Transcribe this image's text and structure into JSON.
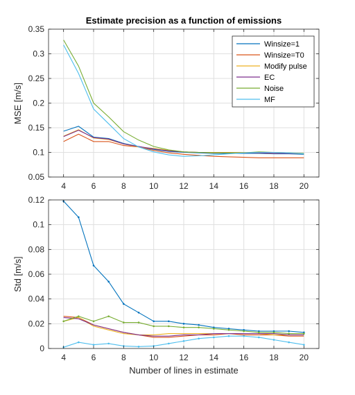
{
  "chart_data": [
    {
      "type": "line",
      "title": "Estimate precision as a function of emissions",
      "xlabel": "",
      "ylabel": "MSE [m/s]",
      "xlim": [
        3,
        21
      ],
      "ylim": [
        0.05,
        0.35
      ],
      "xticks": [
        4,
        6,
        8,
        10,
        12,
        14,
        16,
        18,
        20
      ],
      "yticks": [
        0.05,
        0.1,
        0.15,
        0.2,
        0.25,
        0.3,
        0.35
      ],
      "ytick_labels": [
        "0.05",
        "0.1",
        "0.15",
        "0.2",
        "0.25",
        "0.3",
        "0.35"
      ],
      "grid": true,
      "legend": "top-right",
      "x": [
        4,
        5,
        6,
        7,
        8,
        9,
        10,
        11,
        12,
        13,
        14,
        15,
        16,
        17,
        18,
        19,
        20
      ],
      "series": [
        {
          "name": "Winsize=1",
          "color": "#0072BD",
          "values": [
            0.143,
            0.153,
            0.131,
            0.128,
            0.118,
            0.112,
            0.106,
            0.102,
            0.1,
            0.099,
            0.098,
            0.098,
            0.098,
            0.098,
            0.097,
            0.097,
            0.096
          ]
        },
        {
          "name": "Winsize=T0",
          "color": "#D95319",
          "values": [
            0.122,
            0.137,
            0.122,
            0.122,
            0.114,
            0.111,
            0.104,
            0.099,
            0.096,
            0.094,
            0.092,
            0.091,
            0.09,
            0.089,
            0.089,
            0.089,
            0.089
          ]
        },
        {
          "name": "Modify pulse",
          "color": "#EDB120",
          "values": [
            0.133,
            0.146,
            0.129,
            0.126,
            0.117,
            0.111,
            0.108,
            0.104,
            0.101,
            0.1,
            0.1,
            0.1,
            0.1,
            0.099,
            0.098,
            0.098,
            0.097
          ]
        },
        {
          "name": "EC",
          "color": "#7E2F8E",
          "values": [
            0.132,
            0.145,
            0.13,
            0.127,
            0.117,
            0.112,
            0.107,
            0.103,
            0.101,
            0.1,
            0.099,
            0.099,
            0.099,
            0.099,
            0.098,
            0.098,
            0.097
          ]
        },
        {
          "name": "Noise",
          "color": "#77AC30",
          "values": [
            0.328,
            0.275,
            0.2,
            0.172,
            0.142,
            0.125,
            0.112,
            0.105,
            0.101,
            0.1,
            0.099,
            0.099,
            0.099,
            0.101,
            0.1,
            0.099,
            0.098
          ]
        },
        {
          "name": "MF",
          "color": "#4DBEEE",
          "values": [
            0.318,
            0.26,
            0.188,
            0.158,
            0.128,
            0.111,
            0.101,
            0.095,
            0.092,
            0.093,
            0.095,
            0.097,
            0.099,
            0.1,
            0.1,
            0.099,
            0.097
          ]
        }
      ]
    },
    {
      "type": "line",
      "title": "",
      "xlabel": "Number of lines in estimate",
      "ylabel": "Std [m/s]",
      "xlim": [
        3,
        21
      ],
      "ylim": [
        0,
        0.12
      ],
      "xticks": [
        4,
        6,
        8,
        10,
        12,
        14,
        16,
        18,
        20
      ],
      "yticks": [
        0,
        0.02,
        0.04,
        0.06,
        0.08,
        0.1,
        0.12
      ],
      "ytick_labels": [
        "0",
        "0.02",
        "0.04",
        "0.06",
        "0.08",
        "0.1",
        "0.12"
      ],
      "grid": true,
      "x": [
        4,
        5,
        6,
        7,
        8,
        9,
        10,
        11,
        12,
        13,
        14,
        15,
        16,
        17,
        18,
        19,
        20
      ],
      "series": [
        {
          "name": "Winsize=1",
          "color": "#0072BD",
          "markers": true,
          "values": [
            0.119,
            0.106,
            0.067,
            0.054,
            0.036,
            0.029,
            0.022,
            0.022,
            0.02,
            0.019,
            0.017,
            0.016,
            0.015,
            0.014,
            0.014,
            0.014,
            0.013
          ]
        },
        {
          "name": "Winsize=T0",
          "color": "#D95319",
          "markers": false,
          "values": [
            0.026,
            0.025,
            0.019,
            0.016,
            0.013,
            0.011,
            0.009,
            0.009,
            0.01,
            0.011,
            0.011,
            0.012,
            0.011,
            0.011,
            0.011,
            0.01,
            0.01
          ]
        },
        {
          "name": "Modify pulse",
          "color": "#EDB120",
          "markers": false,
          "values": [
            0.022,
            0.025,
            0.018,
            0.015,
            0.012,
            0.011,
            0.011,
            0.012,
            0.012,
            0.012,
            0.012,
            0.012,
            0.012,
            0.012,
            0.011,
            0.011,
            0.011
          ]
        },
        {
          "name": "EC",
          "color": "#7E2F8E",
          "markers": false,
          "values": [
            0.025,
            0.024,
            0.019,
            0.016,
            0.013,
            0.011,
            0.01,
            0.01,
            0.011,
            0.011,
            0.012,
            0.012,
            0.012,
            0.012,
            0.012,
            0.011,
            0.011
          ]
        },
        {
          "name": "Noise",
          "color": "#77AC30",
          "markers": true,
          "values": [
            0.022,
            0.026,
            0.022,
            0.026,
            0.021,
            0.021,
            0.018,
            0.018,
            0.017,
            0.017,
            0.016,
            0.015,
            0.014,
            0.013,
            0.013,
            0.012,
            0.012
          ]
        },
        {
          "name": "MF",
          "color": "#4DBEEE",
          "markers": true,
          "values": [
            0.001,
            0.005,
            0.003,
            0.004,
            0.002,
            0.0015,
            0.002,
            0.004,
            0.006,
            0.008,
            0.009,
            0.01,
            0.01,
            0.009,
            0.007,
            0.005,
            0.003
          ]
        }
      ]
    }
  ]
}
